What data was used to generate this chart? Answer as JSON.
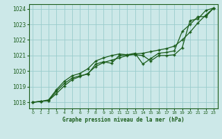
{
  "title": "Graphe pression niveau de la mer (hPa)",
  "bg_color": "#cce8e8",
  "grid_color": "#99cccc",
  "line_color": "#1a5c1a",
  "marker_color": "#1a5c1a",
  "xlim": [
    -0.5,
    23.5
  ],
  "ylim": [
    1017.6,
    1024.3
  ],
  "yticks": [
    1018,
    1019,
    1020,
    1021,
    1022,
    1023,
    1024
  ],
  "xticks": [
    0,
    1,
    2,
    3,
    4,
    5,
    6,
    7,
    8,
    9,
    10,
    11,
    12,
    13,
    14,
    15,
    16,
    17,
    18,
    19,
    20,
    21,
    22,
    23
  ],
  "line1_x": [
    0,
    1,
    2,
    3,
    4,
    5,
    6,
    7,
    8,
    9,
    10,
    11,
    12,
    13,
    14,
    15,
    16,
    17,
    18,
    19,
    20,
    21,
    22,
    23
  ],
  "line1_y": [
    1018.0,
    1018.05,
    1018.1,
    1018.7,
    1019.2,
    1019.55,
    1019.7,
    1019.8,
    1020.45,
    1020.6,
    1020.5,
    1021.0,
    1021.05,
    1021.05,
    1021.0,
    1020.65,
    1021.0,
    1021.0,
    1021.05,
    1021.5,
    1023.25,
    1023.35,
    1023.9,
    1024.05
  ],
  "line2_x": [
    0,
    1,
    2,
    3,
    4,
    5,
    6,
    7,
    8,
    9,
    10,
    11,
    12,
    13,
    14,
    15,
    16,
    17,
    18,
    19,
    20,
    21,
    22,
    23
  ],
  "line2_y": [
    1018.0,
    1018.05,
    1018.15,
    1018.8,
    1019.35,
    1019.7,
    1019.85,
    1020.15,
    1020.65,
    1020.85,
    1021.0,
    1021.1,
    1021.05,
    1021.15,
    1020.45,
    1020.8,
    1021.15,
    1021.2,
    1021.3,
    1022.55,
    1023.0,
    1023.5,
    1023.5,
    1024.05
  ],
  "line3_x": [
    0,
    1,
    2,
    3,
    4,
    5,
    6,
    7,
    8,
    9,
    10,
    11,
    12,
    13,
    14,
    15,
    16,
    17,
    18,
    19,
    20,
    21,
    22,
    23
  ],
  "line3_y": [
    1018.0,
    1018.05,
    1018.1,
    1018.55,
    1019.05,
    1019.45,
    1019.65,
    1019.85,
    1020.3,
    1020.55,
    1020.7,
    1020.85,
    1021.0,
    1021.1,
    1021.15,
    1021.25,
    1021.35,
    1021.45,
    1021.6,
    1022.0,
    1022.5,
    1023.1,
    1023.6,
    1024.05
  ]
}
